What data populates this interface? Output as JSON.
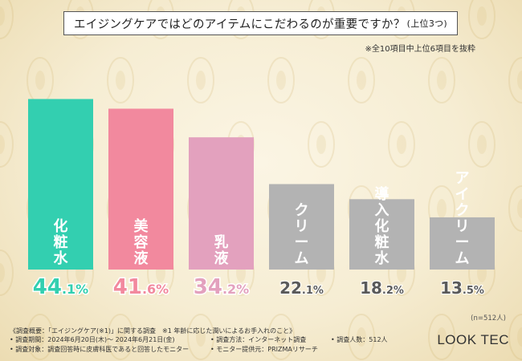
{
  "title": {
    "main": "エイジングケアではどのアイテムにこだわるのが重要ですか？",
    "suffix": "(上位3つ)"
  },
  "note": "※全10項目中上位6項目を抜粋",
  "chart_data": {
    "type": "bar",
    "title": "エイジングケアではどのアイテムにこだわるのが重要ですか？(上位3つ)",
    "categories": [
      "化粧水",
      "美容液",
      "乳液",
      "クリーム",
      "導入化粧水",
      "アイクリーム"
    ],
    "values": [
      44.1,
      41.6,
      34.2,
      22.1,
      18.2,
      13.5
    ],
    "labels": [
      {
        "int": "44",
        "dec": ".1%"
      },
      {
        "int": "41",
        "dec": ".6%"
      },
      {
        "int": "34",
        "dec": ".2%"
      },
      {
        "int": "22",
        "dec": ".1%"
      },
      {
        "int": "18",
        "dec": ".2%"
      },
      {
        "int": "13",
        "dec": ".5%"
      }
    ],
    "ylim": [
      0,
      50
    ],
    "colors": [
      "#33cfb0",
      "#f2899e",
      "#e3a1be",
      "#b3b3b3",
      "#b3b3b3",
      "#b3b3b3"
    ],
    "value_colors": [
      "#33cfb0",
      "#f2899e",
      "#e3a1be",
      "#5a5a5a",
      "#5a5a5a",
      "#5a5a5a"
    ],
    "xlabel": "",
    "ylabel": ""
  },
  "sample_size": "(n=512人)",
  "footer": {
    "line1": "《調査概要：「エイジングケア(※1)」に関する調査　※1 年齢に応じた潤いによるお手入れのこと》",
    "line2a": "• 調査期間：2024年6月20日(木)～ 2024年6月21日(金)",
    "line2b": "• 調査方法：インターネット調査",
    "line2c": "• 調査人数：512人",
    "line3a": "• 調査対象：調査回答時に皮膚科医であると回答したモニター",
    "line3b": "• モニター提供元：PRIZMAリサーチ"
  },
  "brand": "LOOK TEC"
}
